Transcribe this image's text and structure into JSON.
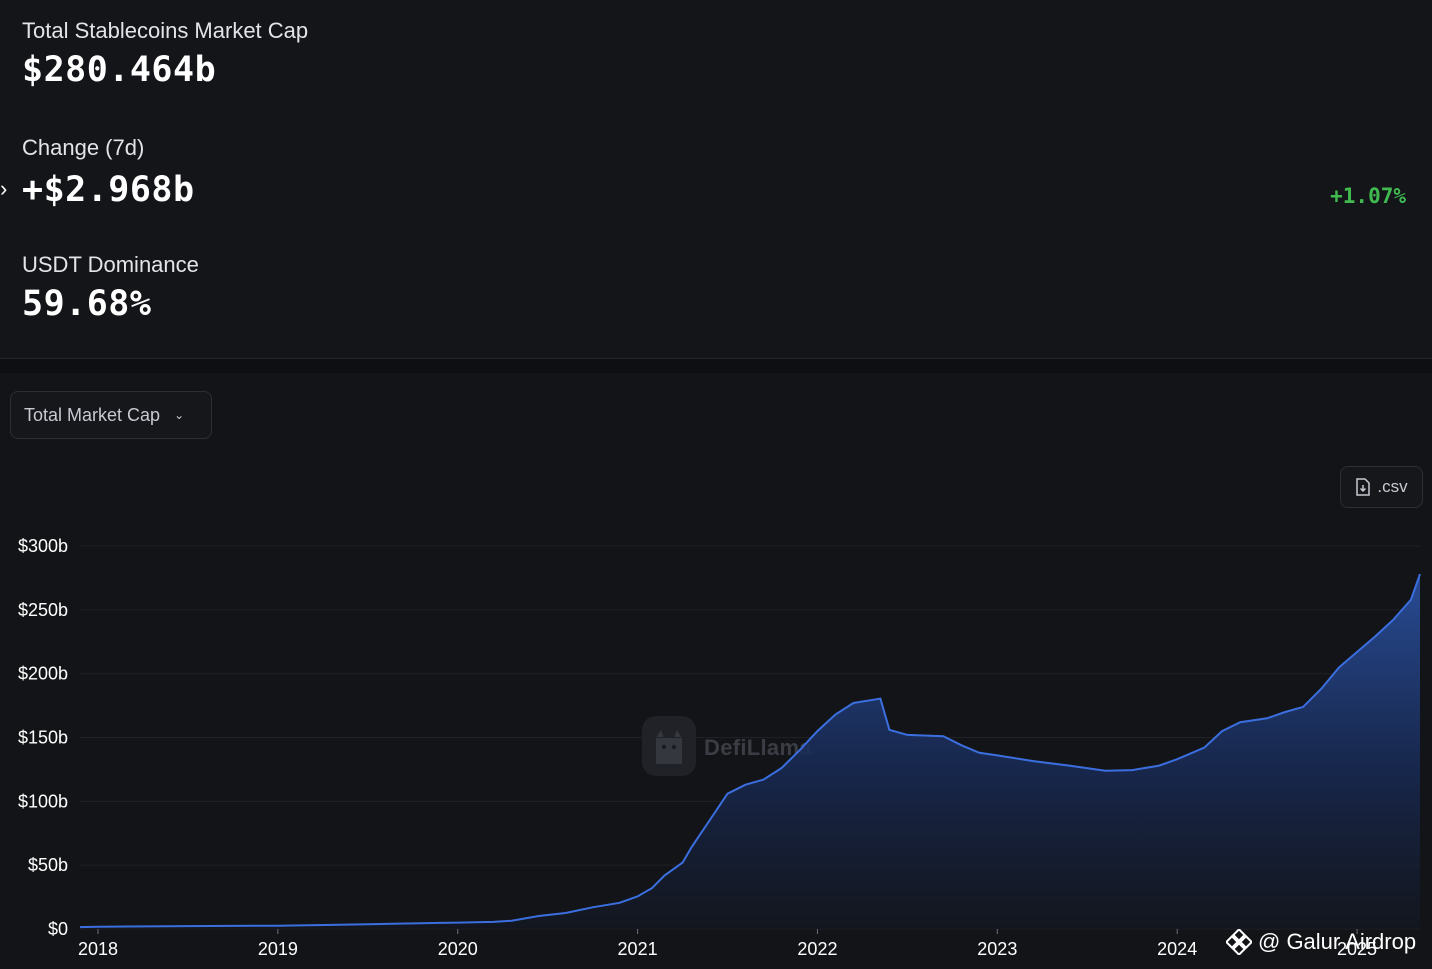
{
  "stats": {
    "total_label": "Total Stablecoins Market Cap",
    "total_value": "$280.464b",
    "change_label": "Change (7d)",
    "change_value": "+$2.968b",
    "change_pct": "+1.07%",
    "dominance_label": "USDT Dominance",
    "dominance_value": "59.68%"
  },
  "controls": {
    "metric_select": "Total Market Cap",
    "csv_label": ".csv"
  },
  "watermark": "DefiLlama",
  "overlay_credit": "@ Galur Airdrop",
  "colors": {
    "background": "#131417",
    "line": "#3b6fe0",
    "positive": "#3fb950"
  },
  "chart_data": {
    "type": "area",
    "title": "",
    "xlabel": "",
    "ylabel": "",
    "y_ticks": [
      "$0",
      "$50b",
      "$100b",
      "$150b",
      "$200b",
      "$250b",
      "$300b"
    ],
    "y_tick_values": [
      0,
      50,
      100,
      150,
      200,
      250,
      300
    ],
    "x_ticks": [
      "2018",
      "2019",
      "2020",
      "2021",
      "2022",
      "2023",
      "2024",
      "2025"
    ],
    "x_tick_values": [
      2018,
      2019,
      2020,
      2021,
      2022,
      2023,
      2024,
      2025
    ],
    "xlim": [
      2017.9,
      2025.35
    ],
    "ylim": [
      0,
      300
    ],
    "grid": "horizontal",
    "series": [
      {
        "x": [
          2017.9,
          2018.0,
          2018.5,
          2019.0,
          2019.3,
          2019.6,
          2019.9,
          2020.0,
          2020.2,
          2020.3,
          2020.45,
          2020.6,
          2020.75,
          2020.9,
          2021.0,
          2021.08,
          2021.15,
          2021.25,
          2021.3,
          2021.4,
          2021.5,
          2021.6,
          2021.7,
          2021.8,
          2021.9,
          2022.0,
          2022.1,
          2022.2,
          2022.33,
          2022.35,
          2022.4,
          2022.5,
          2022.7,
          2022.8,
          2022.9,
          2023.0,
          2023.2,
          2023.4,
          2023.6,
          2023.75,
          2023.9,
          2024.0,
          2024.15,
          2024.25,
          2024.35,
          2024.5,
          2024.6,
          2024.7,
          2024.8,
          2024.9,
          2025.0,
          2025.1,
          2025.2,
          2025.3,
          2025.35
        ],
        "y": [
          1.5,
          1.8,
          2.3,
          2.6,
          3.2,
          4.0,
          4.8,
          5.0,
          5.6,
          6.5,
          10.2,
          12.5,
          17.0,
          20.5,
          25.5,
          32.0,
          42.0,
          52.0,
          64.0,
          85.0,
          106.0,
          113.0,
          117.0,
          126.0,
          140.0,
          155.0,
          168.0,
          177.0,
          180.0,
          180.5,
          156.0,
          152.0,
          151.0,
          144.0,
          138.0,
          136.0,
          131.5,
          128.0,
          124.0,
          124.5,
          128.0,
          133.0,
          142.0,
          155.0,
          162.0,
          165.0,
          170.0,
          174.0,
          188.0,
          205.0,
          217.0,
          229.0,
          242.0,
          258.0,
          278.0
        ]
      }
    ]
  }
}
